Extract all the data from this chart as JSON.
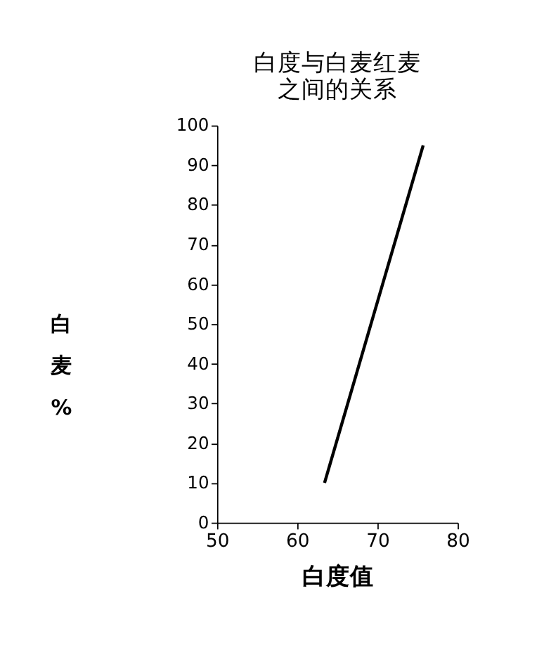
{
  "chart_data": {
    "type": "line",
    "title": "白度与白麦红麦",
    "subtitle": "之间的关系",
    "xlabel": "白度值",
    "ylabel": "白麦%",
    "x": [
      63.4,
      75.7
    ],
    "series": [
      {
        "color": "#000000",
        "values": [
          10,
          95
        ]
      }
    ],
    "xlim": [
      50,
      80
    ],
    "xticks": [
      50,
      60,
      70,
      80
    ],
    "ylim": [
      0,
      100
    ],
    "yticks": [
      0,
      10,
      20,
      30,
      40,
      50,
      60,
      70,
      80,
      90,
      100
    ],
    "grid": false,
    "legend": false,
    "marker": "none",
    "line_style": "solid"
  }
}
